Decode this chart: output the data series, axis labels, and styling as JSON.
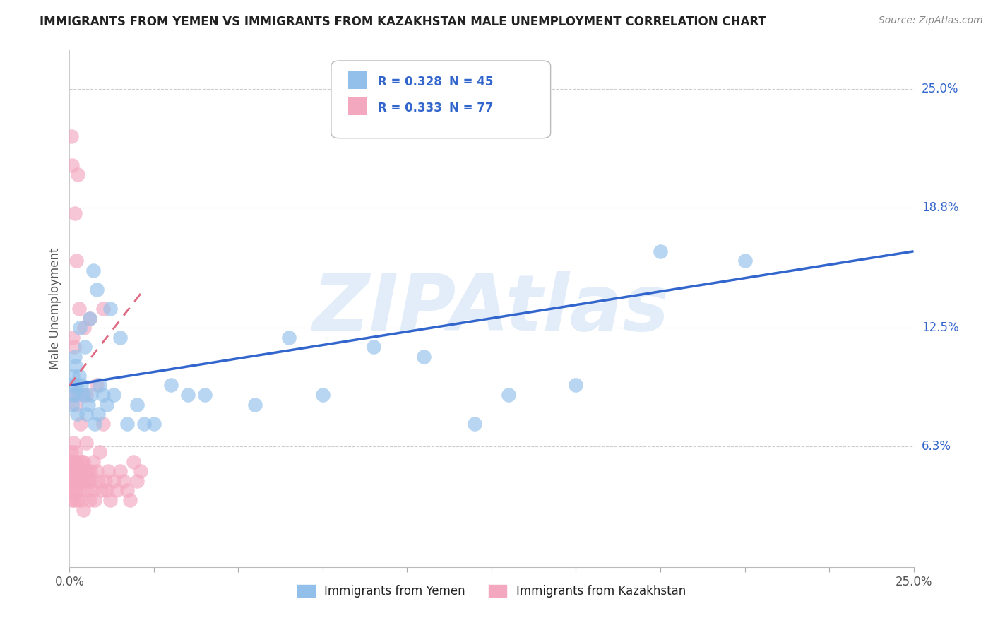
{
  "title": "IMMIGRANTS FROM YEMEN VS IMMIGRANTS FROM KAZAKHSTAN MALE UNEMPLOYMENT CORRELATION CHART",
  "source": "Source: ZipAtlas.com",
  "ylabel": "Male Unemployment",
  "ytick_labels": [
    "6.3%",
    "12.5%",
    "18.8%",
    "25.0%"
  ],
  "ytick_values": [
    6.3,
    12.5,
    18.8,
    25.0
  ],
  "xlim": [
    0.0,
    25.0
  ],
  "ylim": [
    0.0,
    27.0
  ],
  "legend_yemen_r": "R = 0.328",
  "legend_yemen_n": "N = 45",
  "legend_kaz_r": "R = 0.333",
  "legend_kaz_n": "N = 77",
  "legend_yemen_label": "Immigrants from Yemen",
  "legend_kaz_label": "Immigrants from Kazakhstan",
  "color_yemen": "#92C0EA",
  "color_kaz": "#F4A8C0",
  "color_trend_yemen": "#3366CC",
  "color_trend_kaz": "#E06880",
  "watermark": "ZIPAtlas",
  "watermark_color": "#B8D4F0",
  "background_color": "#FFFFFF",
  "yemen_x": [
    0.05,
    0.08,
    0.1,
    0.12,
    0.15,
    0.18,
    0.2,
    0.22,
    0.25,
    0.28,
    0.3,
    0.35,
    0.4,
    0.45,
    0.5,
    0.6,
    0.7,
    0.8,
    0.9,
    1.0,
    1.2,
    1.5,
    2.0,
    2.5,
    3.0,
    4.0,
    5.5,
    6.5,
    7.5,
    9.0,
    10.5,
    12.0,
    13.0,
    15.0,
    17.5,
    20.0,
    0.55,
    0.65,
    0.75,
    0.85,
    1.1,
    1.3,
    1.7,
    2.2,
    3.5
  ],
  "yemen_y": [
    9.5,
    8.5,
    10.0,
    9.0,
    11.0,
    10.5,
    9.5,
    8.0,
    9.0,
    10.0,
    12.5,
    9.5,
    9.0,
    11.5,
    8.0,
    13.0,
    15.5,
    14.5,
    9.5,
    9.0,
    13.5,
    12.0,
    8.5,
    7.5,
    9.5,
    9.0,
    8.5,
    12.0,
    9.0,
    11.5,
    11.0,
    7.5,
    9.0,
    9.5,
    16.5,
    16.0,
    8.5,
    9.0,
    7.5,
    8.0,
    8.5,
    9.0,
    7.5,
    7.5,
    9.0
  ],
  "kaz_x": [
    0.02,
    0.03,
    0.04,
    0.05,
    0.06,
    0.07,
    0.08,
    0.09,
    0.1,
    0.11,
    0.12,
    0.13,
    0.14,
    0.15,
    0.16,
    0.17,
    0.18,
    0.19,
    0.2,
    0.22,
    0.24,
    0.26,
    0.28,
    0.3,
    0.32,
    0.34,
    0.36,
    0.38,
    0.4,
    0.42,
    0.45,
    0.48,
    0.5,
    0.52,
    0.55,
    0.58,
    0.6,
    0.62,
    0.65,
    0.68,
    0.7,
    0.75,
    0.8,
    0.85,
    0.9,
    0.95,
    1.0,
    1.05,
    1.1,
    1.15,
    1.2,
    1.3,
    1.4,
    1.5,
    1.6,
    1.7,
    1.8,
    1.9,
    2.0,
    2.1,
    0.05,
    0.07,
    0.09,
    0.11,
    0.13,
    0.15,
    0.18,
    0.21,
    0.25,
    0.29,
    0.33,
    0.37,
    0.43,
    0.5,
    0.6,
    0.8,
    1.0
  ],
  "kaz_y": [
    5.5,
    4.0,
    5.0,
    6.0,
    4.5,
    5.5,
    3.5,
    4.0,
    5.0,
    6.5,
    4.5,
    5.0,
    3.5,
    4.5,
    5.5,
    6.0,
    4.0,
    5.0,
    5.5,
    3.5,
    4.5,
    5.0,
    4.0,
    5.5,
    4.5,
    3.5,
    5.0,
    4.5,
    3.0,
    5.5,
    4.5,
    5.0,
    6.5,
    4.0,
    5.0,
    4.5,
    3.5,
    5.0,
    4.5,
    4.0,
    5.5,
    3.5,
    5.0,
    4.5,
    6.0,
    4.0,
    7.5,
    4.5,
    4.0,
    5.0,
    3.5,
    4.5,
    4.0,
    5.0,
    4.5,
    4.0,
    3.5,
    5.5,
    4.5,
    5.0,
    22.5,
    21.0,
    12.0,
    9.0,
    11.5,
    18.5,
    8.5,
    16.0,
    20.5,
    13.5,
    7.5,
    5.5,
    12.5,
    9.0,
    13.0,
    9.5,
    13.5
  ],
  "trend_yemen_x0": 0.0,
  "trend_yemen_x1": 25.0,
  "trend_yemen_y0": 9.5,
  "trend_yemen_y1": 16.5,
  "trend_kaz_x0": 0.0,
  "trend_kaz_x1": 2.2,
  "trend_kaz_y0": 9.5,
  "trend_kaz_y1": 14.5
}
